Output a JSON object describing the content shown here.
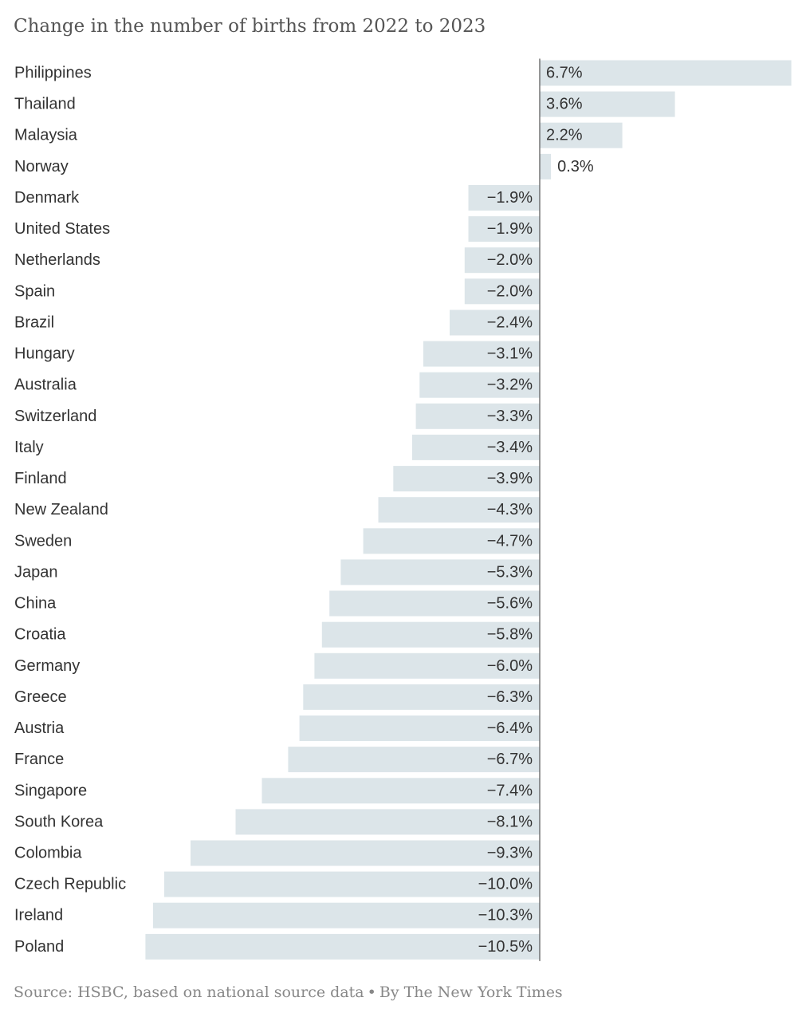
{
  "chart_data": {
    "type": "bar",
    "orientation": "horizontal",
    "title": "Change in the number of births from 2022 to 2023",
    "source": "Source: HSBC, based on national source data",
    "separator": "•",
    "byline": "By The New York Times",
    "bar_color": "#dce5e9",
    "axis_color": "#555555",
    "label_color": "#333333",
    "grid": false,
    "legend": "none",
    "xlim": [
      -10.5,
      6.7
    ],
    "categories": [
      "Philippines",
      "Thailand",
      "Malaysia",
      "Norway",
      "Denmark",
      "United States",
      "Netherlands",
      "Spain",
      "Brazil",
      "Hungary",
      "Australia",
      "Switzerland",
      "Italy",
      "Finland",
      "New Zealand",
      "Sweden",
      "Japan",
      "China",
      "Croatia",
      "Germany",
      "Greece",
      "Austria",
      "France",
      "Singapore",
      "South Korea",
      "Colombia",
      "Czech Republic",
      "Ireland",
      "Poland"
    ],
    "values": [
      6.7,
      3.6,
      2.2,
      0.3,
      -1.9,
      -1.9,
      -2.0,
      -2.0,
      -2.4,
      -3.1,
      -3.2,
      -3.3,
      -3.4,
      -3.9,
      -4.3,
      -4.7,
      -5.3,
      -5.6,
      -5.8,
      -6.0,
      -6.3,
      -6.4,
      -6.7,
      -7.4,
      -8.1,
      -9.3,
      -10.0,
      -10.3,
      -10.5
    ],
    "value_labels": [
      "6.7%",
      "3.6%",
      "2.2%",
      "0.3%",
      "−1.9%",
      "−1.9%",
      "−2.0%",
      "−2.0%",
      "−2.4%",
      "−3.1%",
      "−3.2%",
      "−3.3%",
      "−3.4%",
      "−3.9%",
      "−4.3%",
      "−4.7%",
      "−5.3%",
      "−5.6%",
      "−5.8%",
      "−6.0%",
      "−6.3%",
      "−6.4%",
      "−6.7%",
      "−7.4%",
      "−8.1%",
      "−9.3%",
      "−10.0%",
      "−10.3%",
      "−10.5%"
    ]
  }
}
